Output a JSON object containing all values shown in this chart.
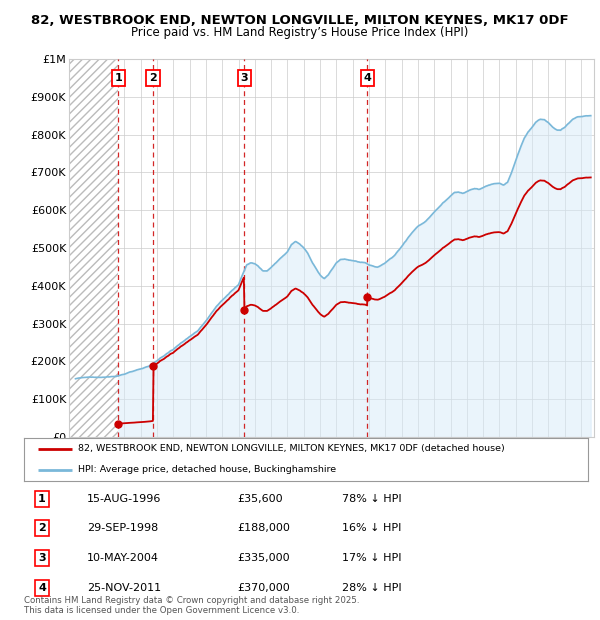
{
  "title1": "82, WESTBROOK END, NEWTON LONGVILLE, MILTON KEYNES, MK17 0DF",
  "title2": "Price paid vs. HM Land Registry’s House Price Index (HPI)",
  "ylim": [
    0,
    1000000
  ],
  "yticks": [
    0,
    100000,
    200000,
    300000,
    400000,
    500000,
    600000,
    700000,
    800000,
    900000,
    1000000
  ],
  "ytick_labels": [
    "£0",
    "£100K",
    "£200K",
    "£300K",
    "£400K",
    "£500K",
    "£600K",
    "£700K",
    "£800K",
    "£900K",
    "£1M"
  ],
  "xlim_start": 1993.6,
  "xlim_end": 2025.8,
  "sales": [
    {
      "num": 1,
      "year": 1996.62,
      "price": 35600,
      "label": "15-AUG-1996",
      "price_str": "£35,600",
      "hpi_str": "78% ↓ HPI"
    },
    {
      "num": 2,
      "year": 1998.75,
      "price": 188000,
      "label": "29-SEP-1998",
      "price_str": "£188,000",
      "hpi_str": "16% ↓ HPI"
    },
    {
      "num": 3,
      "year": 2004.36,
      "price": 335000,
      "label": "10-MAY-2004",
      "price_str": "£335,000",
      "hpi_str": "17% ↓ HPI"
    },
    {
      "num": 4,
      "year": 2011.9,
      "price": 370000,
      "label": "25-NOV-2011",
      "price_str": "£370,000",
      "hpi_str": "28% ↓ HPI"
    }
  ],
  "hpi_color": "#7ab8d9",
  "hpi_fill_color": "#d6eaf8",
  "price_color": "#cc0000",
  "background_color": "#ffffff",
  "grid_color": "#cccccc",
  "legend_line1": "82, WESTBROOK END, NEWTON LONGVILLE, MILTON KEYNES, MK17 0DF (detached house)",
  "legend_line2": "HPI: Average price, detached house, Buckinghamshire",
  "footnote1": "Contains HM Land Registry data © Crown copyright and database right 2025.",
  "footnote2": "This data is licensed under the Open Government Licence v3.0."
}
